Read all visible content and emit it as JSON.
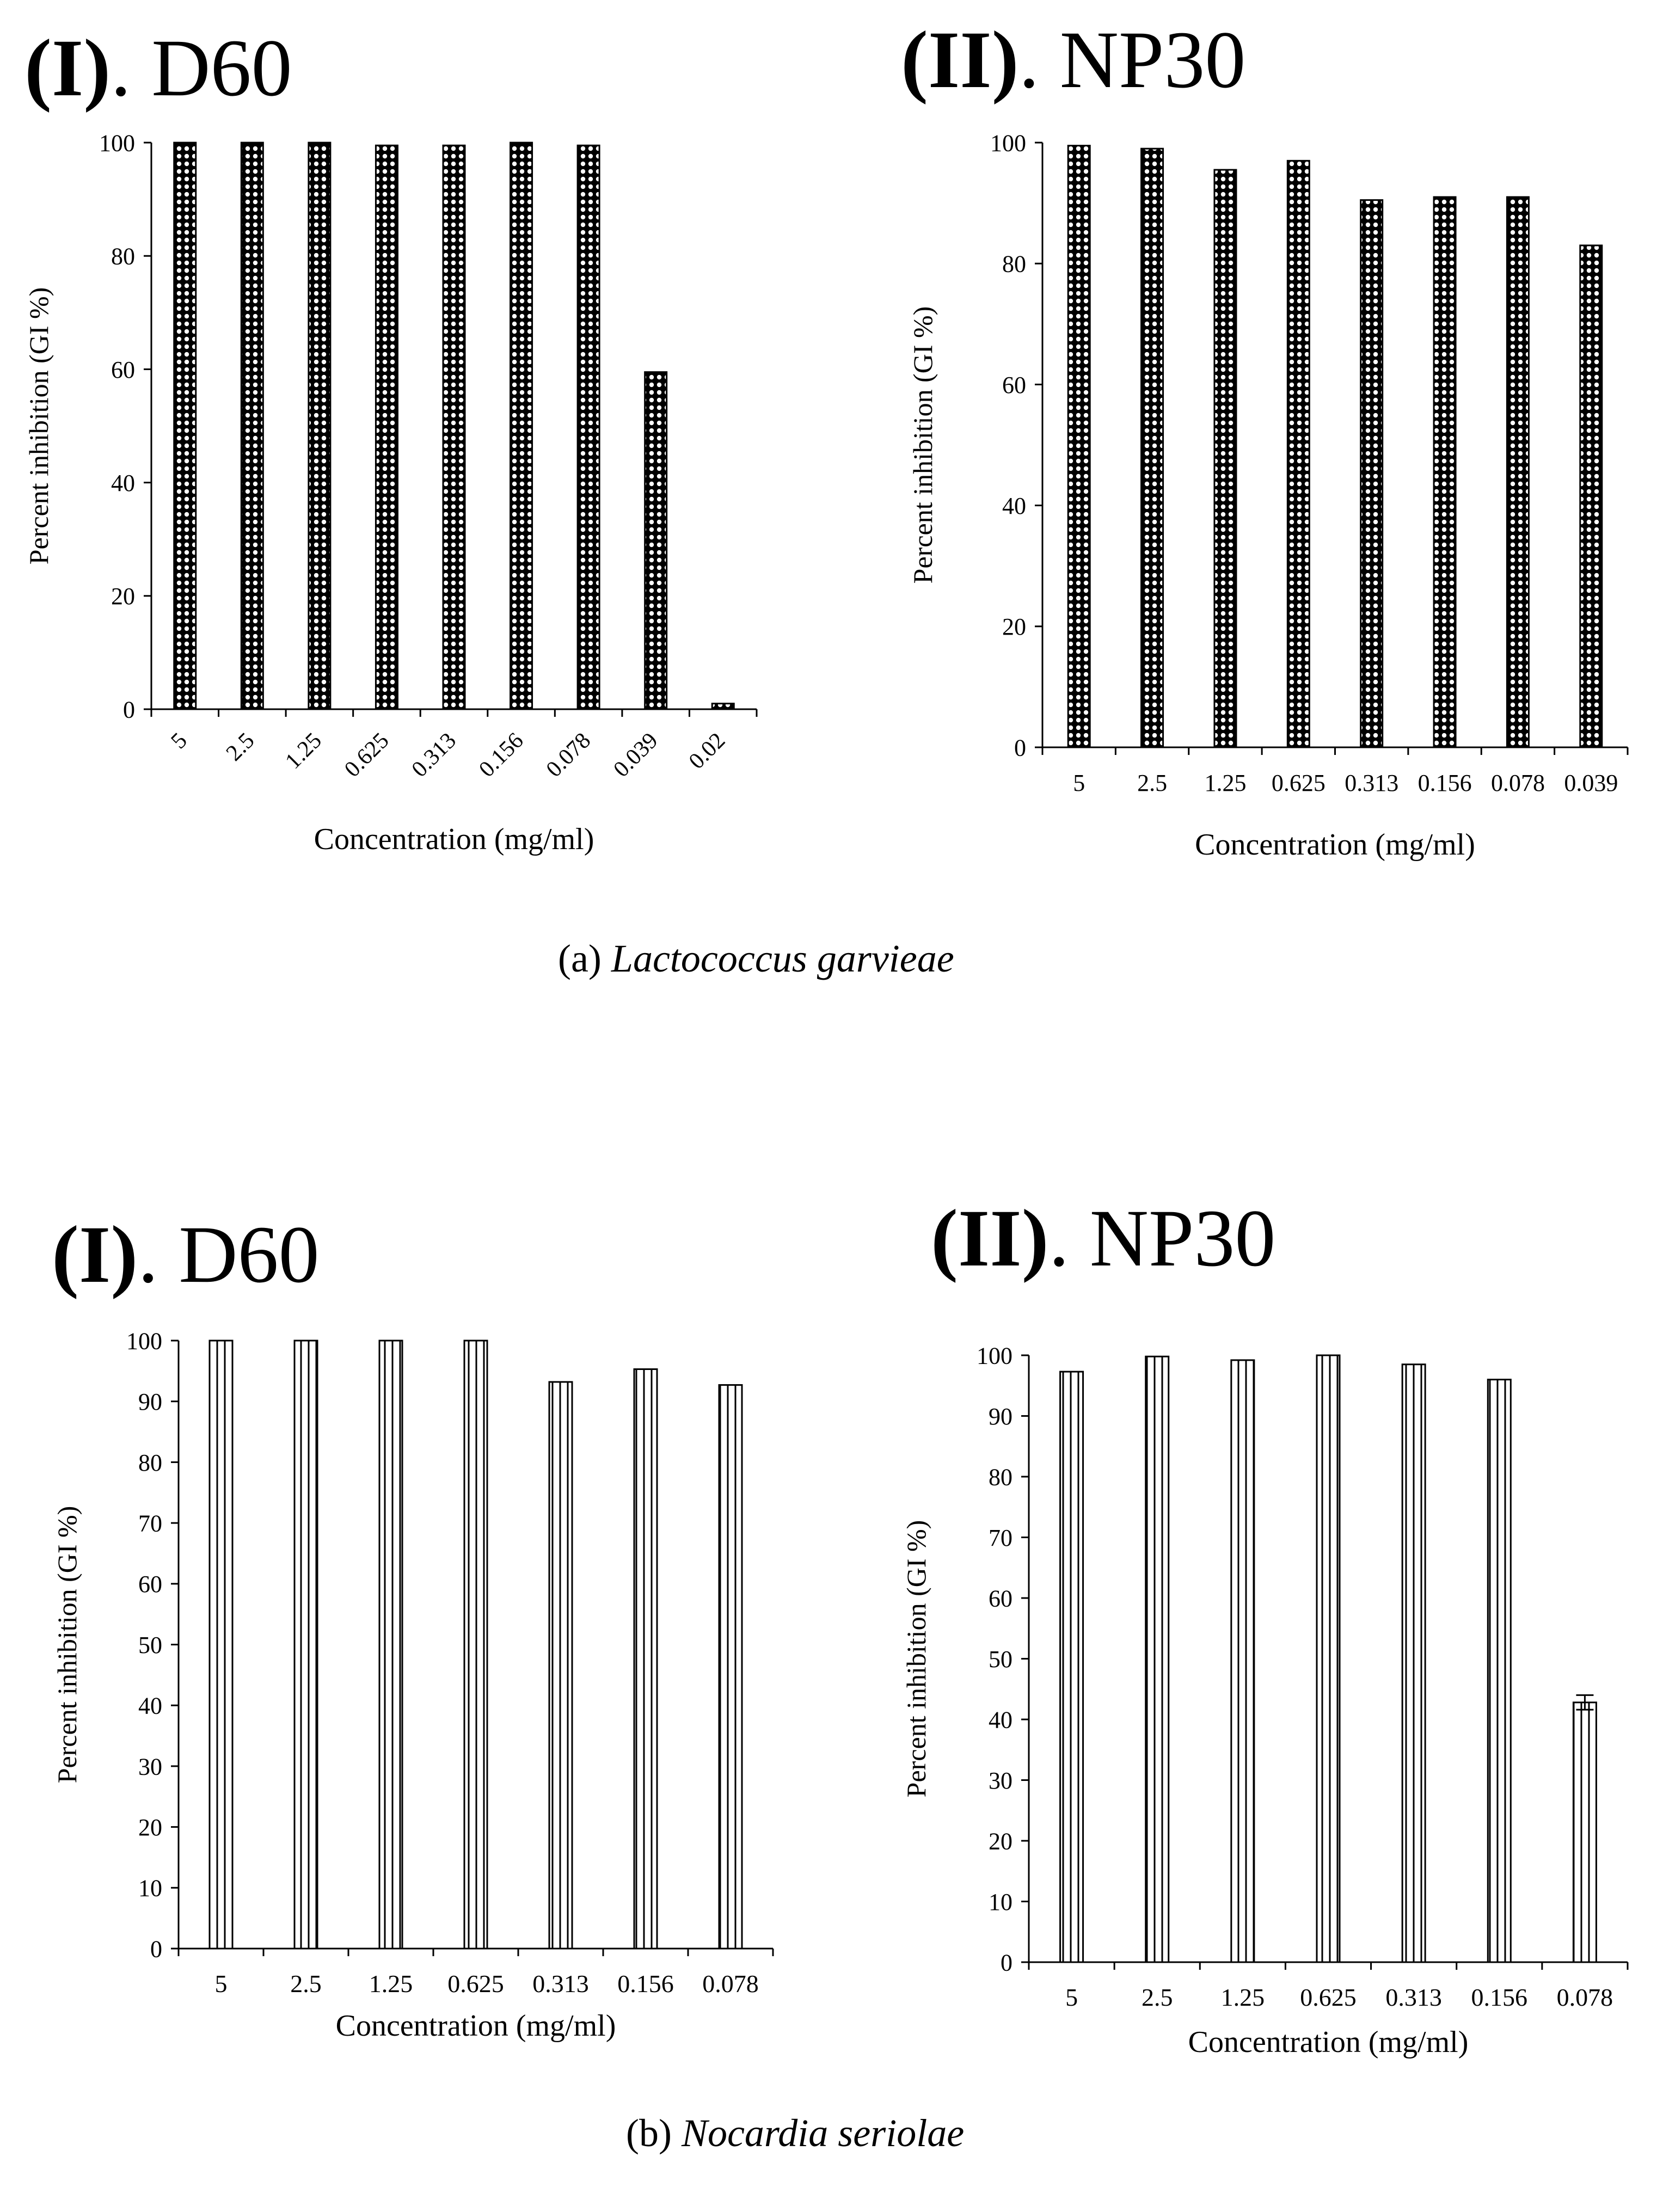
{
  "colors": {
    "axis": "#000000",
    "bar_edge": "#000000",
    "bar_fill": "#ffffff",
    "dot_fill": "#000000"
  },
  "captions": {
    "a": {
      "prefix": "(a) ",
      "organism": "Lactococcus garvieae"
    },
    "b": {
      "prefix": "(b) ",
      "organism": "Nocardia seriolae"
    }
  },
  "panel_titles": {
    "a1": {
      "roman": "(I)",
      "rest": ". D60"
    },
    "a2": {
      "roman": "(II)",
      "rest": ". NP30"
    },
    "b1": {
      "roman": "(I)",
      "rest": ". D60"
    },
    "b2": {
      "roman": "(II)",
      "rest": ". NP30"
    }
  },
  "chart_data": [
    {
      "type": "bar",
      "title": "(I). D60",
      "group": "(a) Lactococcus garvieae",
      "categories": [
        "5",
        "2.5",
        "1.25",
        "0.625",
        "0.313",
        "0.156",
        "0.078",
        "0.039",
        "0.02"
      ],
      "values": [
        100,
        100,
        100,
        99.5,
        99.5,
        100,
        99.5,
        59.5,
        1
      ],
      "xlabel": "Concentration (mg/ml)",
      "ylabel": "Percent inhibition (GI %)",
      "ylim": [
        0,
        100
      ],
      "yticks": [
        0,
        20,
        40,
        60,
        80,
        100
      ],
      "bar_pattern": "dots",
      "tick_rotation": "diagonal",
      "grid": false
    },
    {
      "type": "bar",
      "title": "(II). NP30",
      "group": "(a) Lactococcus garvieae",
      "categories": [
        "5",
        "2.5",
        "1.25",
        "0.625",
        "0.313",
        "0.156",
        "0.078",
        "0.039"
      ],
      "values": [
        99.5,
        99,
        95.5,
        97,
        90.5,
        91,
        91,
        83
      ],
      "xlabel": "Concentration (mg/ml)",
      "ylabel": "Percent inhibition (GI %)",
      "ylim": [
        0,
        100
      ],
      "yticks": [
        0,
        20,
        40,
        60,
        80,
        100
      ],
      "bar_pattern": "dots",
      "tick_rotation": "none",
      "grid": false
    },
    {
      "type": "bar",
      "title": "(I). D60",
      "group": "(b) Nocardia seriolae",
      "categories": [
        "5",
        "2.5",
        "1.25",
        "0.625",
        "0.313",
        "0.156",
        "0.078"
      ],
      "values": [
        100,
        100,
        100,
        100,
        93.2,
        95.3,
        92.7
      ],
      "xlabel": "Concentration (mg/ml)",
      "ylabel": "Percent inhibition (GI %)",
      "ylim": [
        0,
        100
      ],
      "yticks": [
        0,
        10,
        20,
        30,
        40,
        50,
        60,
        70,
        80,
        90,
        100
      ],
      "bar_pattern": "vertical-stripes",
      "tick_rotation": "none",
      "grid": false
    },
    {
      "type": "bar",
      "title": "(II). NP30",
      "group": "(b) Nocardia seriolae",
      "categories": [
        "5",
        "2.5",
        "1.25",
        "0.625",
        "0.313",
        "0.156",
        "0.078"
      ],
      "values": [
        97.3,
        99.8,
        99.2,
        100,
        98.5,
        96,
        42.8
      ],
      "errors": [
        0,
        0,
        0,
        0,
        0,
        0,
        1.2
      ],
      "xlabel": "Concentration (mg/ml)",
      "ylabel": "Percent inhibition (GI %)",
      "ylim": [
        0,
        100
      ],
      "yticks": [
        0,
        10,
        20,
        30,
        40,
        50,
        60,
        70,
        80,
        90,
        100
      ],
      "bar_pattern": "vertical-stripes",
      "tick_rotation": "none",
      "grid": false
    }
  ]
}
